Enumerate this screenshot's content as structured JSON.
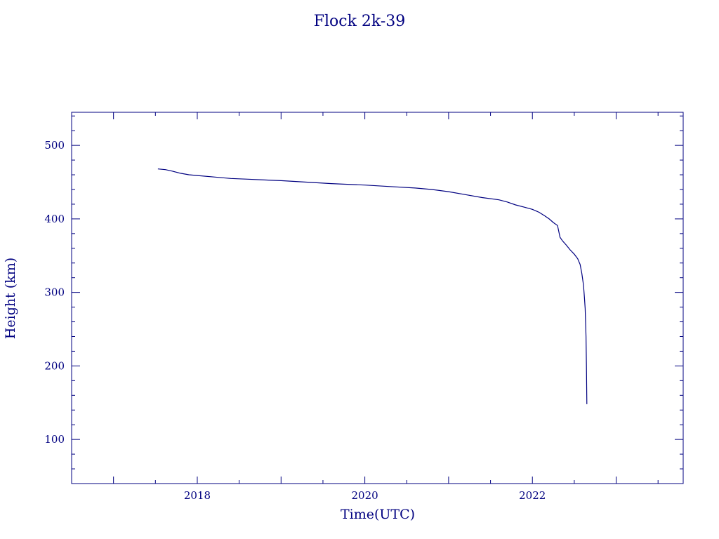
{
  "chart_data": {
    "type": "line",
    "title": "Flock 2k-39",
    "xlabel": "Time(UTC)",
    "ylabel": "Height (km)",
    "xlim": [
      2016.5,
      2023.8
    ],
    "ylim": [
      40,
      545
    ],
    "x_ticks": [
      2018,
      2020,
      2022
    ],
    "x_tick_labels": [
      "2018",
      "2020",
      "2022"
    ],
    "y_ticks": [
      100,
      200,
      300,
      400,
      500
    ],
    "y_tick_labels": [
      "100",
      "200",
      "300",
      "400",
      "500"
    ],
    "grid": false,
    "color": "#000080",
    "series": [
      {
        "x": [
          2017.53,
          2017.62,
          2017.7,
          2017.8,
          2017.9,
          2018.0,
          2018.2,
          2018.4,
          2018.6,
          2018.8,
          2019.0,
          2019.3,
          2019.6,
          2020.0,
          2020.3,
          2020.6,
          2020.8,
          2021.0,
          2021.2,
          2021.4,
          2021.6,
          2021.7,
          2021.8,
          2021.9,
          2022.0,
          2022.08,
          2022.15,
          2022.2,
          2022.25,
          2022.3,
          2022.33,
          2022.36,
          2022.4,
          2022.45,
          2022.5,
          2022.54,
          2022.57,
          2022.59,
          2022.61,
          2022.62,
          2022.63,
          2022.635,
          2022.64,
          2022.645,
          2022.65
        ],
        "y": [
          468,
          467,
          465,
          462,
          460,
          459,
          457,
          455,
          454,
          453,
          452,
          450,
          448,
          446,
          444,
          442,
          440,
          437,
          433,
          429,
          426,
          423,
          419,
          416,
          413,
          409,
          404,
          400,
          395,
          391,
          375,
          370,
          365,
          358,
          352,
          346,
          338,
          326,
          310,
          295,
          278,
          260,
          240,
          200,
          148
        ]
      }
    ]
  }
}
